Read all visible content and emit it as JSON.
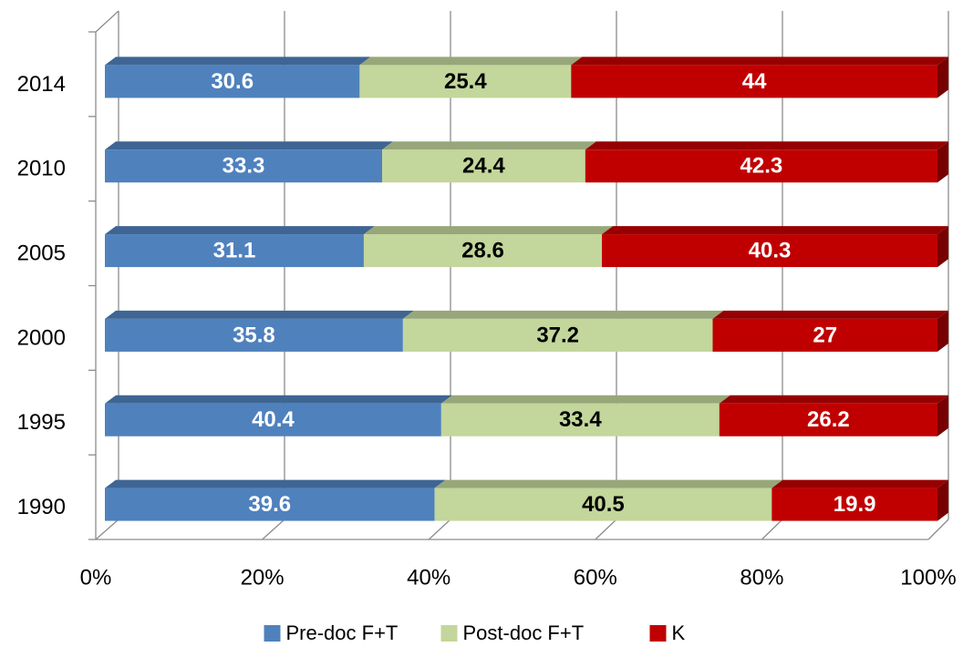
{
  "chart_data": {
    "type": "stacked_bar_horizontal_3d",
    "categories": [
      "2014",
      "2010",
      "2005",
      "2000",
      "1995",
      "1990"
    ],
    "series": [
      {
        "name": "Pre-doc F+T",
        "color": "#4f81bd",
        "values": [
          30.6,
          33.3,
          31.1,
          35.8,
          40.4,
          39.6
        ]
      },
      {
        "name": "Post-doc F+T",
        "color": "#c3d69b",
        "values": [
          25.4,
          24.4,
          28.6,
          37.2,
          33.4,
          40.5
        ]
      },
      {
        "name": "K",
        "color": "#c00000",
        "values": [
          44,
          42.3,
          40.3,
          27,
          26.2,
          19.9
        ]
      }
    ],
    "xlim": [
      0,
      100
    ],
    "xticks": [
      {
        "value": 0,
        "label": "0%"
      },
      {
        "value": 20,
        "label": "20%"
      },
      {
        "value": 40,
        "label": "40%"
      },
      {
        "value": 60,
        "label": "60%"
      },
      {
        "value": 80,
        "label": "80%"
      },
      {
        "value": 100,
        "label": "100%"
      }
    ],
    "grid": true,
    "legend": "bottom"
  }
}
